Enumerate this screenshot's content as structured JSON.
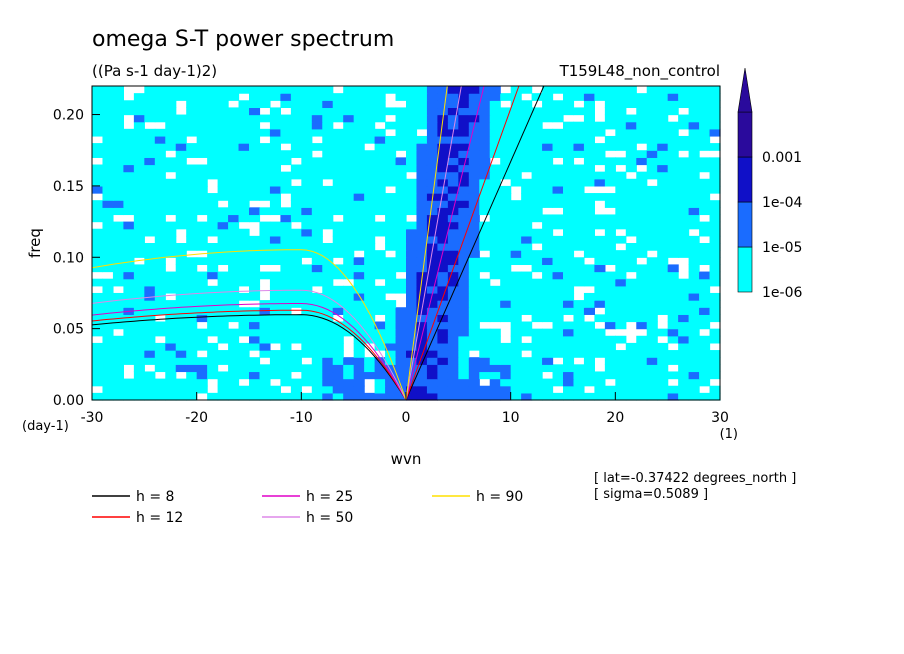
{
  "header": {
    "title": "omega S-T power spectrum",
    "units": "((Pa s-1 day-1)2)",
    "run_name": "T159L48_non_control"
  },
  "notes": {
    "lat": "[ lat=-0.37422 degrees_north ]",
    "sigma": "[ sigma=0.5089 ]"
  },
  "colors": {
    "background": "#ffffff",
    "level_1e-06": "#00ffff",
    "level_1e-05": "#1a6cff",
    "level_1e-04": "#1010c8",
    "level_0.001": "#2a0a9c"
  },
  "chart_data": {
    "type": "heatmap",
    "title": "omega S-T power spectrum",
    "subtitle": "((Pa s-1 day-1)2)",
    "annotation": "T159L48_non_control",
    "xlabel": "wvn",
    "ylabel": "freq",
    "x_unit": "(1)",
    "y_unit": "(day-1)",
    "xlim": [
      -30,
      30
    ],
    "ylim": [
      0,
      0.22
    ],
    "x_ticks": [
      -30,
      -20,
      -10,
      0,
      10,
      20,
      30
    ],
    "x_tick_labels": [
      "-30",
      "-20",
      "-10",
      "0",
      "10",
      "20",
      "30"
    ],
    "y_ticks": [
      0,
      0.05,
      0.1,
      0.15,
      0.2
    ],
    "y_tick_labels": [
      "0.00",
      "0.05",
      "0.10",
      "0.15",
      "0.20"
    ],
    "colorbar": {
      "levels": [
        "1e-06",
        "1e-05",
        "1e-04",
        "0.001"
      ],
      "colors": [
        "#00ffff",
        "#1a6cff",
        "#1010c8",
        "#2a0a9c"
      ],
      "extend": "max"
    },
    "series": [
      {
        "name": "h =  8",
        "color": "#000000",
        "eq_depth": 8
      },
      {
        "name": "h = 12",
        "color": "#ff0000",
        "eq_depth": 12
      },
      {
        "name": "h = 25",
        "color": "#e000c8",
        "eq_depth": 25
      },
      {
        "name": "h = 50",
        "color": "#dd88e8",
        "eq_depth": 50
      },
      {
        "name": "h = 90",
        "color": "#ffe000",
        "eq_depth": 90
      }
    ],
    "kelvin_wave_slope": [
      0.0167,
      0.0204,
      0.0295,
      0.0416,
      0.0558
    ],
    "rossby_peak": {
      "wvn": [
        -10,
        -10,
        -10,
        -10,
        -10
      ],
      "freq": [
        0.0598,
        0.0629,
        0.0676,
        0.0769,
        0.1053
      ]
    },
    "legend_position": "bottom-left"
  }
}
